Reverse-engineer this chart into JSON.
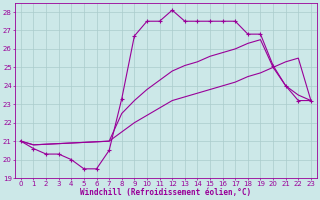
{
  "xlabel": "Windchill (Refroidissement éolien,°C)",
  "bg_color": "#cce8e8",
  "grid_color": "#aacccc",
  "line_color": "#990099",
  "xlim": [
    -0.5,
    23.5
  ],
  "ylim": [
    19,
    28.5
  ],
  "xticks": [
    0,
    1,
    2,
    3,
    4,
    5,
    6,
    7,
    8,
    9,
    10,
    11,
    12,
    13,
    14,
    15,
    16,
    17,
    18,
    19,
    20,
    21,
    22,
    23
  ],
  "yticks": [
    19,
    20,
    21,
    22,
    23,
    24,
    25,
    26,
    27,
    28
  ],
  "curve1_x": [
    0,
    1,
    2,
    3,
    4,
    5,
    6,
    7,
    8,
    9,
    10,
    11,
    12,
    13,
    14,
    15,
    16,
    17,
    18,
    19,
    20,
    21,
    22,
    23
  ],
  "curve1_y": [
    21.0,
    20.6,
    20.3,
    20.3,
    20.0,
    19.5,
    19.5,
    20.5,
    23.3,
    26.7,
    27.5,
    27.5,
    28.1,
    27.5,
    27.5,
    27.5,
    27.5,
    27.5,
    26.8,
    26.8,
    25.1,
    24.0,
    23.2,
    23.2
  ],
  "curve2_x": [
    0,
    1,
    7,
    8,
    9,
    10,
    11,
    12,
    13,
    14,
    15,
    16,
    17,
    18,
    19,
    20,
    21,
    22,
    23
  ],
  "curve2_y": [
    21.0,
    20.8,
    21.0,
    22.5,
    23.2,
    23.8,
    24.3,
    24.8,
    25.1,
    25.3,
    25.6,
    25.8,
    26.0,
    26.3,
    26.5,
    25.0,
    24.0,
    23.5,
    23.2
  ],
  "curve3_x": [
    0,
    1,
    7,
    8,
    9,
    10,
    11,
    12,
    13,
    14,
    15,
    16,
    17,
    18,
    19,
    20,
    21,
    22,
    23
  ],
  "curve3_y": [
    21.0,
    20.8,
    21.0,
    21.5,
    22.0,
    22.4,
    22.8,
    23.2,
    23.4,
    23.6,
    23.8,
    24.0,
    24.2,
    24.5,
    24.7,
    25.0,
    25.3,
    25.5,
    23.2
  ]
}
